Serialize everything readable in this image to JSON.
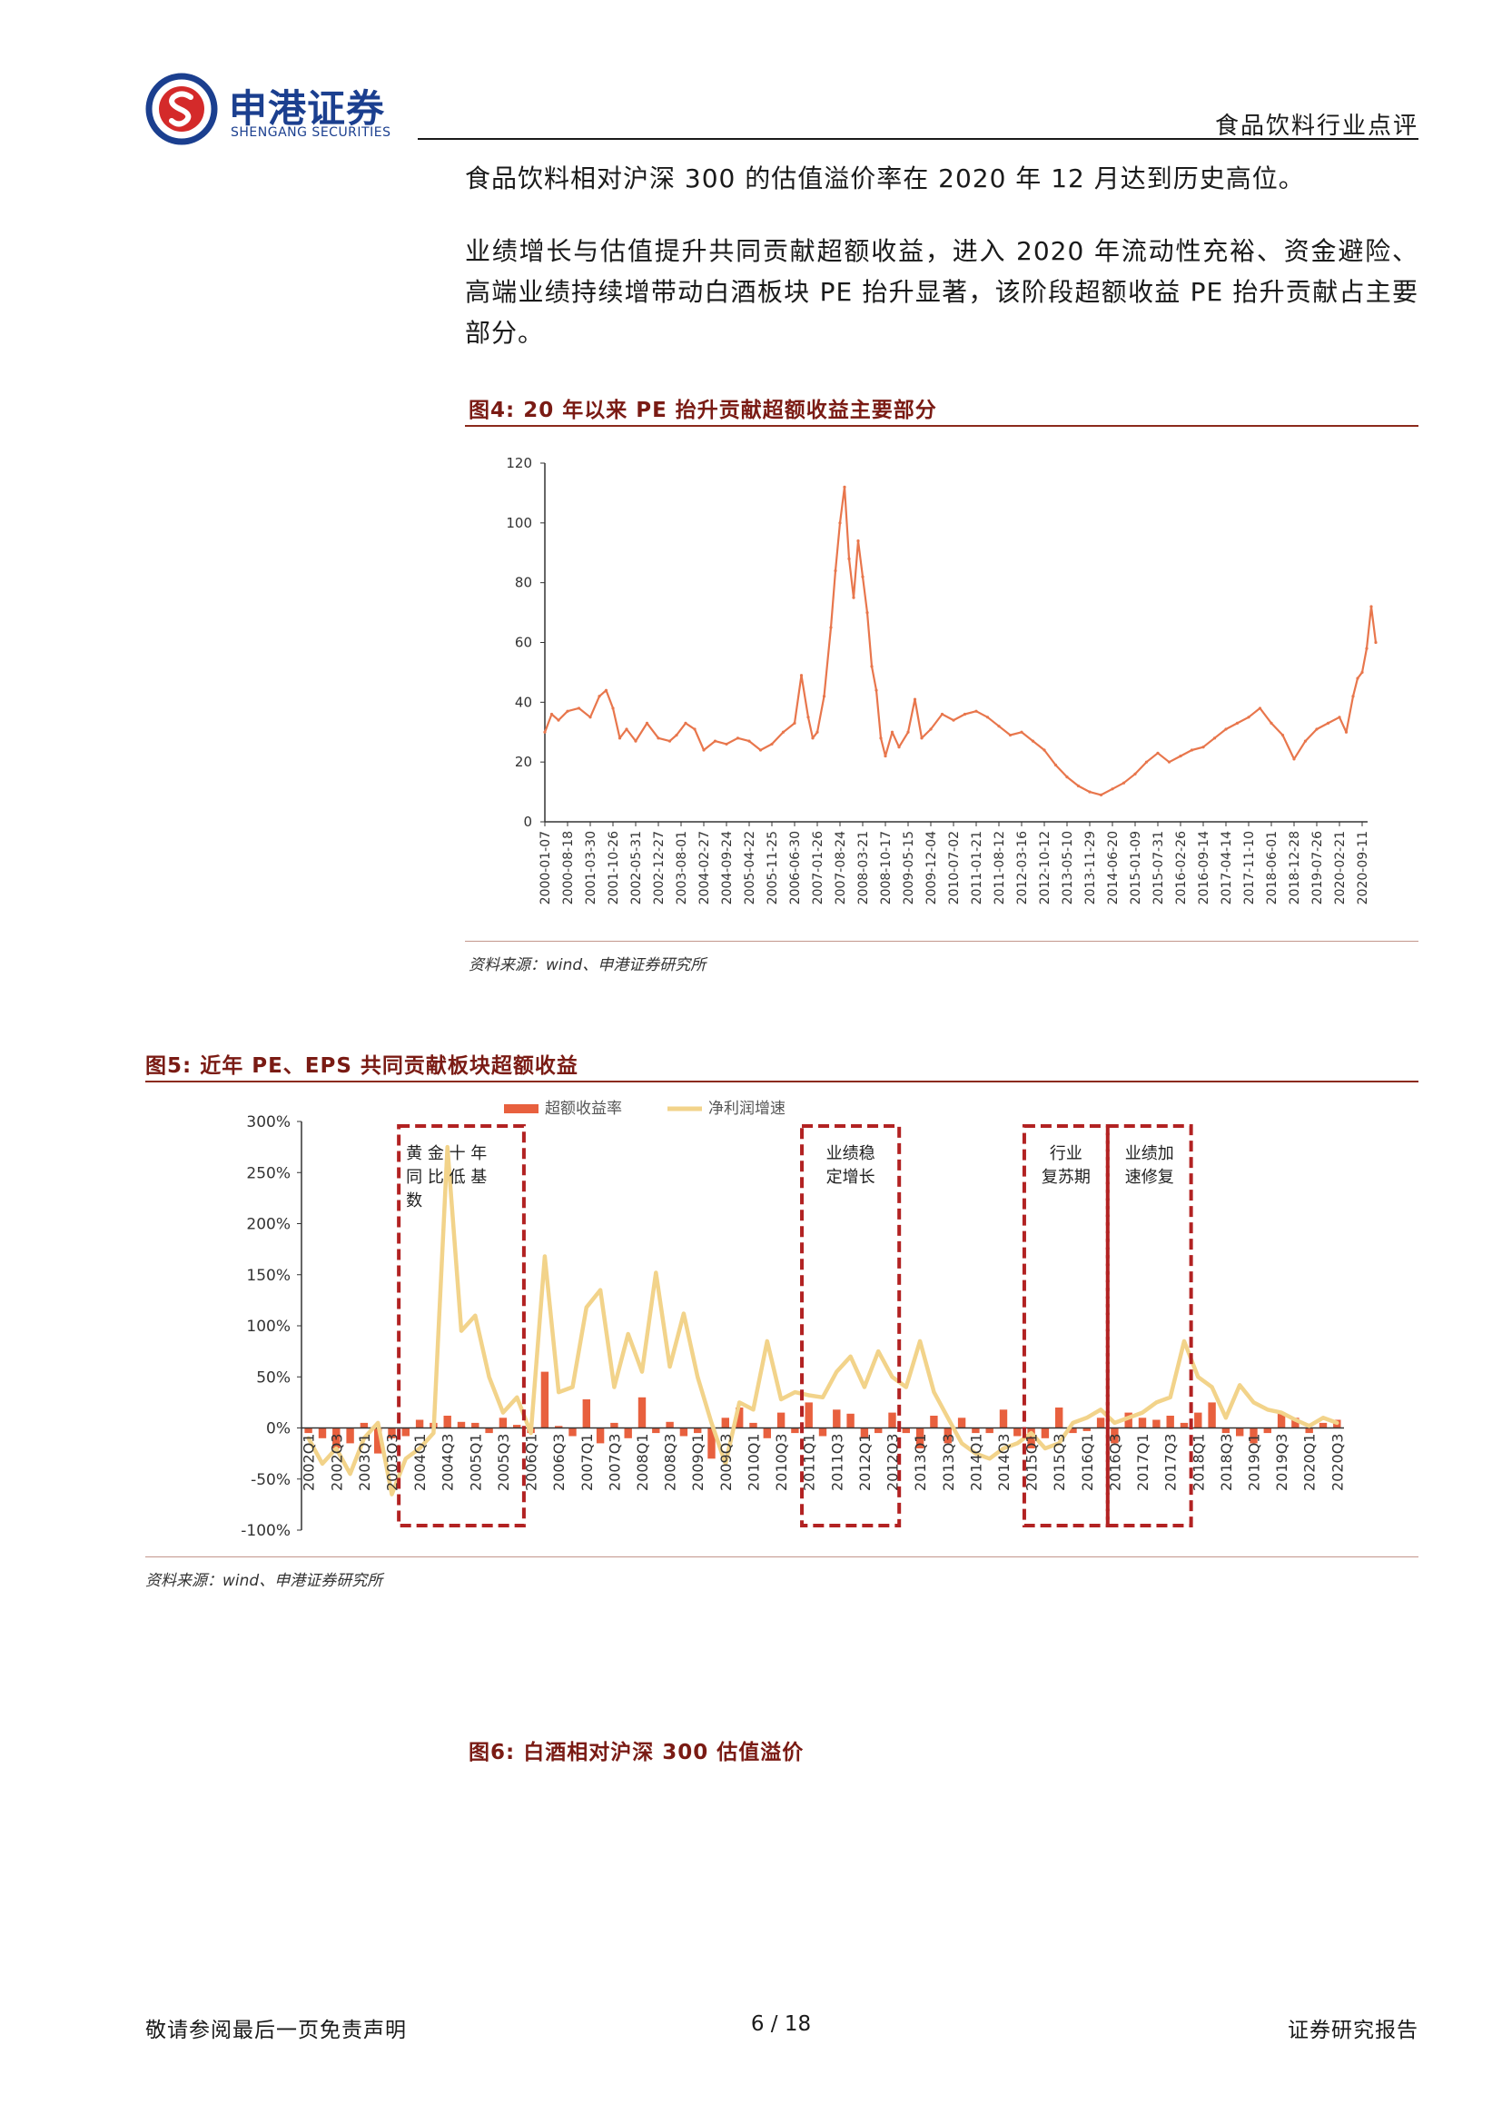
{
  "header": {
    "logo_cn": "申港证券",
    "logo_en": "SHENGANG SECURITIES",
    "category": "食品饮料行业点评"
  },
  "body": {
    "p1": "食品饮料相对沪深 300 的估值溢价率在 2020 年 12 月达到历史高位。",
    "p2": "业绩增长与估值提升共同贡献超额收益，进入 2020 年流动性充裕、资金避险、高端业绩持续增带动白酒板块 PE 抬升显著，该阶段超额收益 PE 抬升贡献占主要部分。"
  },
  "fig4": {
    "title": "图4:  20 年以来 PE 抬升贡献超额收益主要部分",
    "source": "资料来源：wind、申港证券研究所"
  },
  "fig5": {
    "title": "图5:  近年 PE、EPS 共同贡献板块超额收益",
    "source": "资料来源：wind、申港证券研究所",
    "annotations": [
      "黄金十年同比低基数",
      "业绩稳定增长",
      "行业复苏期",
      "业绩加速修复"
    ]
  },
  "fig6": {
    "title": "图6:  白酒相对沪深 300 估值溢价"
  },
  "footer": {
    "left": "敬请参阅最后一页免责声明",
    "page": "6 / 18",
    "right": "证券研究报告"
  },
  "colors": {
    "pe_line": "#e8764c",
    "bar": "#e8603e",
    "growth_line": "#f2d38a",
    "box": "#b22222",
    "title": "#7a1b14",
    "brand": "#1b3f8f"
  },
  "chart_data": [
    {
      "id": "fig4",
      "type": "line",
      "ylim": [
        0,
        120
      ],
      "yticks": [
        0,
        20,
        40,
        60,
        80,
        100,
        120
      ],
      "x_labels": [
        "2000-01-07",
        "2000-08-18",
        "2001-03-30",
        "2001-10-26",
        "2002-05-31",
        "2002-12-27",
        "2003-08-01",
        "2004-02-27",
        "2004-09-24",
        "2005-04-22",
        "2005-11-25",
        "2006-06-30",
        "2007-01-26",
        "2007-08-24",
        "2008-03-21",
        "2008-10-17",
        "2009-05-15",
        "2009-12-04",
        "2010-07-02",
        "2011-01-21",
        "2011-08-12",
        "2012-03-16",
        "2012-10-12",
        "2013-05-10",
        "2013-11-29",
        "2014-06-20",
        "2015-01-09",
        "2015-07-31",
        "2016-02-26",
        "2016-09-14",
        "2017-04-14",
        "2017-11-10",
        "2018-06-01",
        "2018-12-28",
        "2019-07-26",
        "2020-02-21",
        "2020-09-11"
      ],
      "series": [
        {
          "x": [
            0,
            0.3,
            0.6,
            1,
            1.5,
            2,
            2.4,
            2.7,
            3,
            3.3,
            3.6,
            4,
            4.5,
            5,
            5.5,
            5.8,
            6.2,
            6.6,
            7,
            7.5,
            8,
            8.5,
            9,
            9.5,
            10,
            10.5,
            11,
            11.3,
            11.6,
            11.8,
            12,
            12.3,
            12.6,
            12.8,
            13,
            13.2,
            13.4,
            13.6,
            13.8,
            14,
            14.2,
            14.4,
            14.6,
            14.8,
            15,
            15.3,
            15.6,
            16,
            16.3,
            16.6,
            17,
            17.5,
            18,
            18.5,
            19,
            19.5,
            20,
            20.5,
            21,
            21.5,
            22,
            22.5,
            23,
            23.5,
            24,
            24.5,
            25,
            25.5,
            26,
            26.5,
            27,
            27.5,
            28,
            28.5,
            29,
            29.5,
            30,
            30.5,
            31,
            31.5,
            32,
            32.5,
            33,
            33.5,
            34,
            34.5,
            35,
            35.3,
            35.6,
            35.8,
            36,
            36.2,
            36.4,
            36.6
          ],
          "y": [
            30,
            36,
            34,
            37,
            38,
            35,
            42,
            44,
            38,
            28,
            31,
            27,
            33,
            28,
            27,
            29,
            33,
            31,
            24,
            27,
            26,
            28,
            27,
            24,
            26,
            30,
            33,
            49,
            35,
            28,
            30,
            42,
            65,
            84,
            100,
            112,
            88,
            75,
            94,
            82,
            70,
            52,
            44,
            28,
            22,
            30,
            25,
            30,
            41,
            28,
            31,
            36,
            34,
            36,
            37,
            35,
            32,
            29,
            30,
            27,
            24,
            19,
            15,
            12,
            10,
            9,
            11,
            13,
            16,
            20,
            23,
            20,
            22,
            24,
            25,
            28,
            31,
            33,
            35,
            38,
            33,
            29,
            21,
            27,
            31,
            33,
            35,
            30,
            42,
            48,
            50,
            58,
            72,
            60
          ]
        }
      ]
    },
    {
      "id": "fig5",
      "type": "bar",
      "ylim": [
        -100,
        300
      ],
      "yticks": [
        "-100%",
        "-50%",
        "0%",
        "50%",
        "100%",
        "150%",
        "200%",
        "250%",
        "300%"
      ],
      "categories": [
        "2002Q1",
        "2002Q2",
        "2002Q3",
        "2002Q4",
        "2003Q1",
        "2003Q2",
        "2003Q3",
        "2003Q4",
        "2004Q1",
        "2004Q2",
        "2004Q3",
        "2004Q4",
        "2005Q1",
        "2005Q2",
        "2005Q3",
        "2005Q4",
        "2006Q1",
        "2006Q2",
        "2006Q3",
        "2006Q4",
        "2007Q1",
        "2007Q2",
        "2007Q3",
        "2007Q4",
        "2008Q1",
        "2008Q2",
        "2008Q3",
        "2008Q4",
        "2009Q1",
        "2009Q2",
        "2009Q3",
        "2009Q4",
        "2010Q1",
        "2010Q2",
        "2010Q3",
        "2010Q4",
        "2011Q1",
        "2011Q2",
        "2011Q3",
        "2011Q4",
        "2012Q1",
        "2012Q2",
        "2012Q3",
        "2012Q4",
        "2013Q1",
        "2013Q2",
        "2013Q3",
        "2013Q4",
        "2014Q1",
        "2014Q2",
        "2014Q3",
        "2014Q4",
        "2015Q1",
        "2015Q2",
        "2015Q3",
        "2015Q4",
        "2016Q1",
        "2016Q2",
        "2016Q3",
        "2016Q4",
        "2017Q1",
        "2017Q2",
        "2017Q3",
        "2017Q4",
        "2018Q1",
        "2018Q2",
        "2018Q3",
        "2018Q4",
        "2019Q1",
        "2019Q2",
        "2019Q3",
        "2019Q4",
        "2020Q1",
        "2020Q2",
        "2020Q3"
      ],
      "x_tick_labels": [
        "2002Q1",
        "2002Q3",
        "2003Q1",
        "2003Q3",
        "2004Q1",
        "2004Q3",
        "2005Q1",
        "2005Q3",
        "2006Q1",
        "2006Q3",
        "2007Q1",
        "2007Q3",
        "2008Q1",
        "2008Q3",
        "2009Q1",
        "2009Q3",
        "2010Q1",
        "2010Q3",
        "2011Q1",
        "2011Q3",
        "2012Q1",
        "2012Q3",
        "2013Q1",
        "2013Q3",
        "2014Q1",
        "2014Q3",
        "2015Q1",
        "2015Q3",
        "2016Q1",
        "2016Q3",
        "2017Q1",
        "2017Q3",
        "2018Q1",
        "2018Q3",
        "2019Q1",
        "2019Q3",
        "2020Q1",
        "2020Q3"
      ],
      "series": [
        {
          "name": "超额收益率",
          "values": [
            -5,
            -10,
            -20,
            -15,
            5,
            -25,
            -10,
            -8,
            8,
            5,
            12,
            6,
            5,
            -5,
            10,
            3,
            -5,
            55,
            2,
            -8,
            28,
            -15,
            5,
            -10,
            30,
            -5,
            6,
            -8,
            -5,
            -30,
            10,
            20,
            5,
            -10,
            15,
            -5,
            25,
            -8,
            18,
            14,
            -10,
            -5,
            15,
            -5,
            -20,
            12,
            -15,
            10,
            -5,
            -5,
            18,
            -8,
            -20,
            -10,
            20,
            -5,
            -3,
            10,
            -15,
            15,
            10,
            8,
            12,
            5,
            15,
            25,
            -5,
            -8,
            -15,
            -5,
            15,
            10,
            -5,
            5,
            8
          ]
        },
        {
          "name": "净利润增速",
          "values": [
            -10,
            -35,
            -20,
            -45,
            -10,
            5,
            -65,
            -30,
            -20,
            -5,
            275,
            95,
            110,
            50,
            15,
            30,
            -5,
            168,
            35,
            40,
            118,
            135,
            40,
            92,
            55,
            152,
            60,
            112,
            50,
            5,
            -35,
            25,
            18,
            85,
            28,
            35,
            32,
            30,
            55,
            70,
            40,
            75,
            50,
            40,
            85,
            35,
            10,
            -15,
            -25,
            -30,
            -20,
            -15,
            -5,
            -20,
            -15,
            5,
            10,
            18,
            5,
            10,
            15,
            25,
            30,
            85,
            50,
            40,
            10,
            42,
            25,
            18,
            15,
            8,
            2,
            10,
            5
          ]
        }
      ]
    }
  ]
}
